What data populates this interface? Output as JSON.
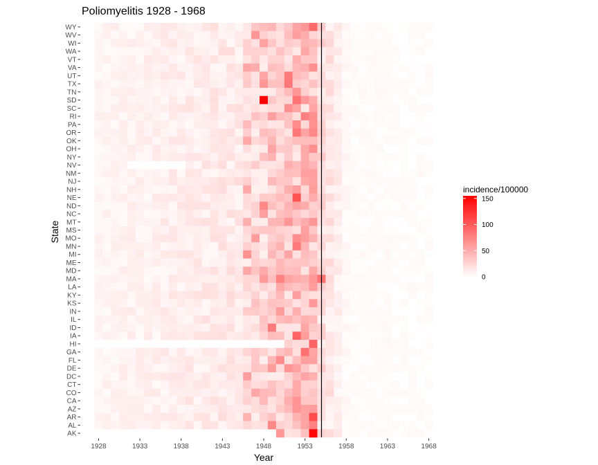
{
  "chart_data": {
    "type": "heatmap",
    "title": "Poliomyelitis 1928 - 1968",
    "xlabel": "Year",
    "ylabel": "State",
    "x_range": [
      1928,
      1968
    ],
    "x_ticks": [
      1928,
      1933,
      1938,
      1943,
      1948,
      1953,
      1958,
      1963,
      1968
    ],
    "vertical_line_year": 1955,
    "states_top_to_bottom": [
      "WY",
      "WV",
      "WI",
      "WA",
      "VT",
      "VA",
      "UT",
      "TX",
      "TN",
      "SD",
      "SC",
      "RI",
      "PA",
      "OR",
      "OK",
      "OH",
      "NY",
      "NV",
      "NM",
      "NJ",
      "NH",
      "NE",
      "ND",
      "NC",
      "MT",
      "MS",
      "MO",
      "MN",
      "MI",
      "ME",
      "MD",
      "MA",
      "LA",
      "KY",
      "KS",
      "IN",
      "IL",
      "ID",
      "IA",
      "HI",
      "GA",
      "FL",
      "DE",
      "DC",
      "CT",
      "CO",
      "CA",
      "AZ",
      "AR",
      "AL",
      "AK"
    ],
    "legend": {
      "title": "incidence/100000",
      "placement": "right",
      "ticks": [
        0,
        50,
        100,
        150
      ],
      "range": [
        0,
        155
      ],
      "color_low": "#ffffff",
      "color_high": "#ff0000"
    },
    "grid": false,
    "background": "#ffffff",
    "notable_values": [
      {
        "state": "SD",
        "year": 1948,
        "value": 155
      },
      {
        "state": "AK",
        "year": 1954,
        "value": 150
      },
      {
        "state": "NE",
        "year": 1952,
        "value": 105
      },
      {
        "state": "MN",
        "year": 1952,
        "value": 80
      },
      {
        "state": "IA",
        "year": 1952,
        "value": 95
      },
      {
        "state": "SD",
        "year": 1952,
        "value": 85
      },
      {
        "state": "UT",
        "year": 1951,
        "value": 80
      },
      {
        "state": "ID",
        "year": 1949,
        "value": 80
      },
      {
        "state": "WY",
        "year": 1954,
        "value": 90
      },
      {
        "state": "MA",
        "year": 1955,
        "value": 85
      }
    ]
  }
}
